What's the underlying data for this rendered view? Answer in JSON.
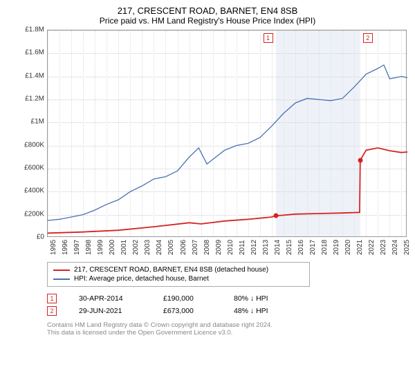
{
  "title": "217, CRESCENT ROAD, BARNET, EN4 8SB",
  "subtitle": "Price paid vs. HM Land Registry's House Price Index (HPI)",
  "chart": {
    "type": "line",
    "ylim": [
      0,
      1800000
    ],
    "ytick_step": 200000,
    "yticks": [
      "£0",
      "£200K",
      "£400K",
      "£600K",
      "£800K",
      "£1M",
      "£1.2M",
      "£1.4M",
      "£1.6M",
      "£1.8M"
    ],
    "xlim": [
      1995,
      2025.5
    ],
    "xticks": [
      1995,
      1996,
      1997,
      1998,
      1999,
      2000,
      2001,
      2002,
      2003,
      2004,
      2005,
      2006,
      2007,
      2008,
      2009,
      2010,
      2011,
      2012,
      2013,
      2014,
      2015,
      2016,
      2017,
      2018,
      2019,
      2020,
      2021,
      2022,
      2023,
      2024,
      2025
    ],
    "background_color": "#ffffff",
    "grid_color": "#cccccc",
    "band_color": "#eef2f8",
    "band": {
      "start": 2014.33,
      "end": 2021.5
    },
    "series": [
      {
        "name": "hpi",
        "color": "#4a6fb3",
        "width": 1.3,
        "points": [
          [
            1995,
            150000
          ],
          [
            1996,
            160000
          ],
          [
            1997,
            180000
          ],
          [
            1998,
            200000
          ],
          [
            1999,
            240000
          ],
          [
            2000,
            290000
          ],
          [
            2001,
            330000
          ],
          [
            2002,
            400000
          ],
          [
            2003,
            450000
          ],
          [
            2004,
            510000
          ],
          [
            2005,
            530000
          ],
          [
            2006,
            580000
          ],
          [
            2007,
            700000
          ],
          [
            2007.8,
            780000
          ],
          [
            2008.5,
            640000
          ],
          [
            2009,
            680000
          ],
          [
            2010,
            760000
          ],
          [
            2011,
            800000
          ],
          [
            2012,
            820000
          ],
          [
            2013,
            870000
          ],
          [
            2014,
            970000
          ],
          [
            2015,
            1080000
          ],
          [
            2016,
            1170000
          ],
          [
            2017,
            1210000
          ],
          [
            2018,
            1200000
          ],
          [
            2019,
            1190000
          ],
          [
            2020,
            1210000
          ],
          [
            2021,
            1310000
          ],
          [
            2022,
            1420000
          ],
          [
            2023,
            1470000
          ],
          [
            2023.5,
            1500000
          ],
          [
            2024,
            1380000
          ],
          [
            2025,
            1400000
          ],
          [
            2025.5,
            1390000
          ]
        ]
      },
      {
        "name": "price",
        "color": "#d62222",
        "width": 1.8,
        "points": [
          [
            1995,
            40000
          ],
          [
            1998,
            50000
          ],
          [
            2001,
            65000
          ],
          [
            2004,
            95000
          ],
          [
            2007,
            130000
          ],
          [
            2008,
            120000
          ],
          [
            2010,
            145000
          ],
          [
            2012,
            160000
          ],
          [
            2014,
            180000
          ],
          [
            2014.33,
            190000
          ],
          [
            2016,
            205000
          ],
          [
            2018,
            210000
          ],
          [
            2020,
            215000
          ],
          [
            2021.45,
            220000
          ],
          [
            2021.5,
            673000
          ],
          [
            2022,
            760000
          ],
          [
            2023,
            780000
          ],
          [
            2024,
            755000
          ],
          [
            2025,
            740000
          ],
          [
            2025.5,
            745000
          ]
        ]
      }
    ],
    "price_points": [
      {
        "x": 2014.33,
        "y": 190000,
        "color": "#d62222"
      },
      {
        "x": 2021.5,
        "y": 673000,
        "color": "#d62222"
      }
    ],
    "markers": [
      {
        "num": "1",
        "x": 2014.33,
        "side": "left",
        "color": "#d62222"
      },
      {
        "num": "2",
        "x": 2021.5,
        "side": "right",
        "color": "#d62222"
      }
    ]
  },
  "legend": [
    {
      "color": "#d62222",
      "label": "217, CRESCENT ROAD, BARNET, EN4 8SB (detached house)"
    },
    {
      "color": "#4a6fb3",
      "label": "HPI: Average price, detached house, Barnet"
    }
  ],
  "transactions": [
    {
      "num": "1",
      "color": "#d62222",
      "date": "30-APR-2014",
      "price": "£190,000",
      "pct": "80%",
      "arrow": "↓",
      "vs": "HPI"
    },
    {
      "num": "2",
      "color": "#d62222",
      "date": "29-JUN-2021",
      "price": "£673,000",
      "pct": "48%",
      "arrow": "↓",
      "vs": "HPI"
    }
  ],
  "footer": {
    "line1": "Contains HM Land Registry data © Crown copyright and database right 2024.",
    "line2": "This data is licensed under the Open Government Licence v3.0."
  }
}
